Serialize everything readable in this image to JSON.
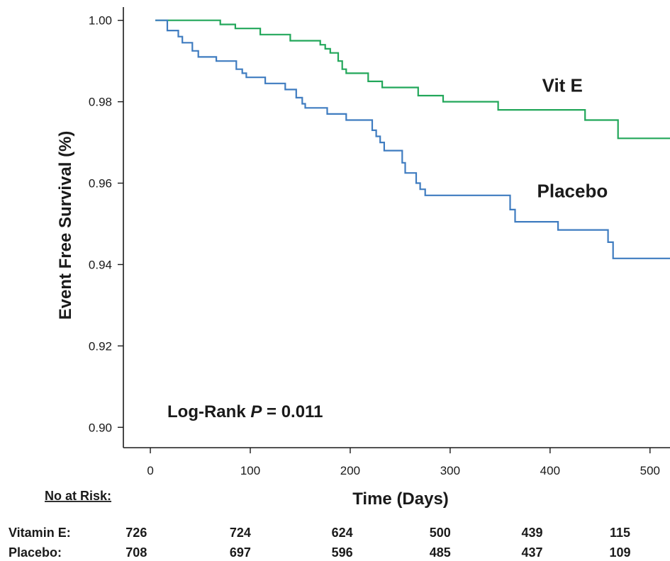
{
  "chart_data": {
    "type": "line",
    "step": true,
    "title": "",
    "xlabel": "Time (Days)",
    "ylabel": "Event Free Survival (%)",
    "xlim": [
      -27,
      520
    ],
    "ylim": [
      0.895,
      1.005
    ],
    "x_ticks": [
      0,
      100,
      200,
      300,
      400,
      500
    ],
    "y_ticks": [
      0.9,
      0.92,
      0.94,
      0.96,
      0.98,
      1.0
    ],
    "y_tick_labels": [
      "0.90",
      "0.92",
      "0.94",
      "0.96",
      "0.98",
      "1.00"
    ],
    "grid": false,
    "annotation": {
      "prefix": "Log-Rank ",
      "p_symbol": "P",
      "suffix": " = 0.011"
    },
    "series": [
      {
        "name": "Vit E",
        "color": "#22a75a",
        "points": [
          [
            5,
            1.0
          ],
          [
            70,
            1.0
          ],
          [
            70,
            0.999
          ],
          [
            85,
            0.999
          ],
          [
            85,
            0.998
          ],
          [
            110,
            0.998
          ],
          [
            110,
            0.9965
          ],
          [
            140,
            0.9965
          ],
          [
            140,
            0.995
          ],
          [
            170,
            0.995
          ],
          [
            170,
            0.994
          ],
          [
            175,
            0.994
          ],
          [
            175,
            0.993
          ],
          [
            180,
            0.993
          ],
          [
            180,
            0.992
          ],
          [
            188,
            0.992
          ],
          [
            188,
            0.99
          ],
          [
            192,
            0.99
          ],
          [
            192,
            0.988
          ],
          [
            196,
            0.988
          ],
          [
            196,
            0.987
          ],
          [
            218,
            0.987
          ],
          [
            218,
            0.985
          ],
          [
            232,
            0.985
          ],
          [
            232,
            0.9835
          ],
          [
            268,
            0.9835
          ],
          [
            268,
            0.9815
          ],
          [
            293,
            0.9815
          ],
          [
            293,
            0.98
          ],
          [
            348,
            0.98
          ],
          [
            348,
            0.978
          ],
          [
            435,
            0.978
          ],
          [
            435,
            0.9755
          ],
          [
            468,
            0.9755
          ],
          [
            468,
            0.971
          ],
          [
            520,
            0.971
          ]
        ]
      },
      {
        "name": "Placebo",
        "color": "#3f7cc0",
        "points": [
          [
            5,
            1.0
          ],
          [
            17,
            1.0
          ],
          [
            17,
            0.9975
          ],
          [
            28,
            0.9975
          ],
          [
            28,
            0.996
          ],
          [
            32,
            0.996
          ],
          [
            32,
            0.9945
          ],
          [
            42,
            0.9945
          ],
          [
            42,
            0.9925
          ],
          [
            48,
            0.9925
          ],
          [
            48,
            0.991
          ],
          [
            66,
            0.991
          ],
          [
            66,
            0.99
          ],
          [
            86,
            0.99
          ],
          [
            86,
            0.988
          ],
          [
            92,
            0.988
          ],
          [
            92,
            0.987
          ],
          [
            96,
            0.987
          ],
          [
            96,
            0.986
          ],
          [
            115,
            0.986
          ],
          [
            115,
            0.9845
          ],
          [
            135,
            0.9845
          ],
          [
            135,
            0.983
          ],
          [
            146,
            0.983
          ],
          [
            146,
            0.981
          ],
          [
            152,
            0.981
          ],
          [
            152,
            0.9795
          ],
          [
            155,
            0.9795
          ],
          [
            155,
            0.9785
          ],
          [
            177,
            0.9785
          ],
          [
            177,
            0.977
          ],
          [
            196,
            0.977
          ],
          [
            196,
            0.9755
          ],
          [
            222,
            0.9755
          ],
          [
            222,
            0.973
          ],
          [
            226,
            0.973
          ],
          [
            226,
            0.9715
          ],
          [
            230,
            0.9715
          ],
          [
            230,
            0.97
          ],
          [
            234,
            0.97
          ],
          [
            234,
            0.968
          ],
          [
            252,
            0.968
          ],
          [
            252,
            0.965
          ],
          [
            255,
            0.965
          ],
          [
            255,
            0.9625
          ],
          [
            266,
            0.9625
          ],
          [
            266,
            0.96
          ],
          [
            270,
            0.96
          ],
          [
            270,
            0.9585
          ],
          [
            275,
            0.9585
          ],
          [
            275,
            0.957
          ],
          [
            360,
            0.957
          ],
          [
            360,
            0.9535
          ],
          [
            365,
            0.9535
          ],
          [
            365,
            0.9505
          ],
          [
            408,
            0.9505
          ],
          [
            408,
            0.9485
          ],
          [
            458,
            0.9485
          ],
          [
            458,
            0.9455
          ],
          [
            463,
            0.9455
          ],
          [
            463,
            0.9415
          ],
          [
            520,
            0.9415
          ]
        ]
      }
    ],
    "series_label_positions": [
      {
        "name": "Vit E",
        "x": 392,
        "y": 0.9825
      },
      {
        "name": "Placebo",
        "x": 387,
        "y": 0.9565
      }
    ],
    "risk_table": {
      "title": "No at Risk:",
      "rows": [
        {
          "label": "Vitamin E:",
          "values": [
            "726",
            "724",
            "624",
            "500",
            "439",
            "115"
          ]
        },
        {
          "label": "Placebo:",
          "values": [
            "708",
            "697",
            "596",
            "485",
            "437",
            "109"
          ]
        }
      ],
      "value_x": [
        -14,
        90,
        192,
        290,
        382,
        470
      ]
    }
  }
}
